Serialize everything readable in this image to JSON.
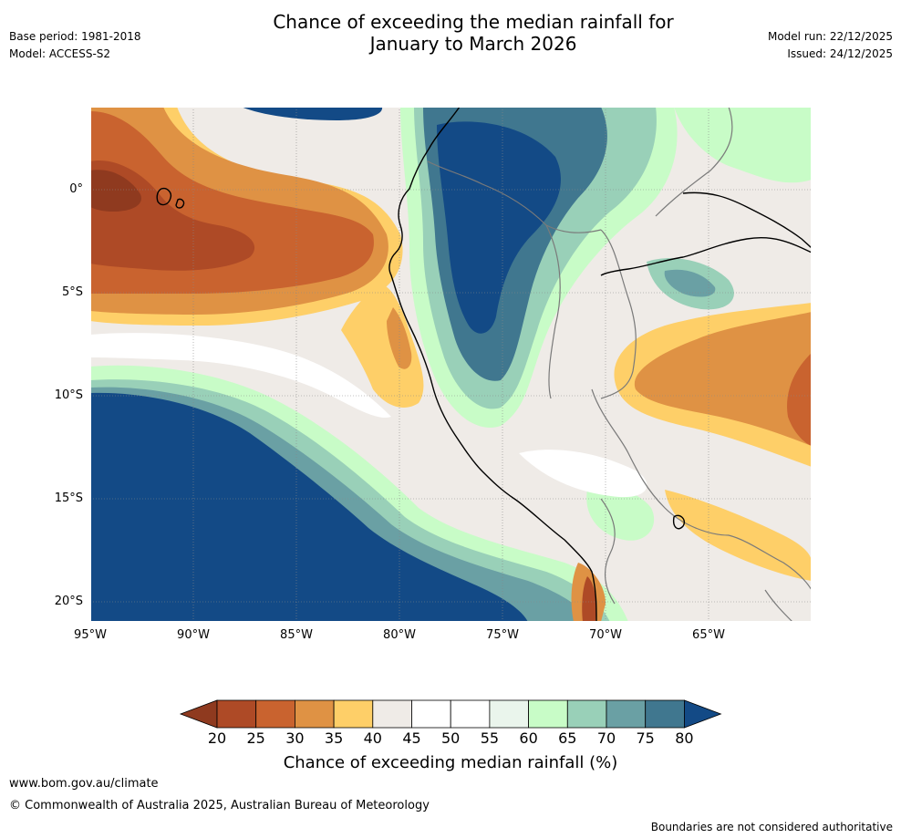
{
  "meta": {
    "base_period": "Base period: 1981-2018",
    "model": "Model: ACCESS-S2",
    "model_run": "Model run: 22/12/2025",
    "issued": "Issued: 24/12/2025"
  },
  "title_line1": "Chance of exceeding the median rainfall for",
  "title_line2": "January to March 2026",
  "map": {
    "lat_labels": [
      "0°",
      "5°S",
      "10°S",
      "15°S",
      "20°S"
    ],
    "lon_labels": [
      "95°W",
      "90°W",
      "85°W",
      "80°W",
      "75°W",
      "70°W",
      "65°W"
    ],
    "lon_range": [
      -95,
      -60
    ],
    "lat_range": [
      -21,
      4
    ]
  },
  "colorbar": {
    "title": "Chance of exceeding median rainfall (%)",
    "tick_labels": [
      "20",
      "25",
      "30",
      "35",
      "40",
      "45",
      "50",
      "55",
      "60",
      "65",
      "70",
      "75",
      "80"
    ],
    "colors": [
      "#8f3a1f",
      "#ae4a26",
      "#c9632f",
      "#df9244",
      "#fecf68",
      "#efebe7",
      "#ffffff",
      "#ffffff",
      "#eaf5ec",
      "#c8fcc7",
      "#99d0b8",
      "#6aa0a4",
      "#40778f",
      "#134a86"
    ]
  },
  "footer": {
    "site": "www.bom.gov.au/climate",
    "copyright": "© Commonwealth of Australia 2025, Australian Bureau of Meteorology",
    "disclaimer": "Boundaries are not considered authoritative"
  }
}
